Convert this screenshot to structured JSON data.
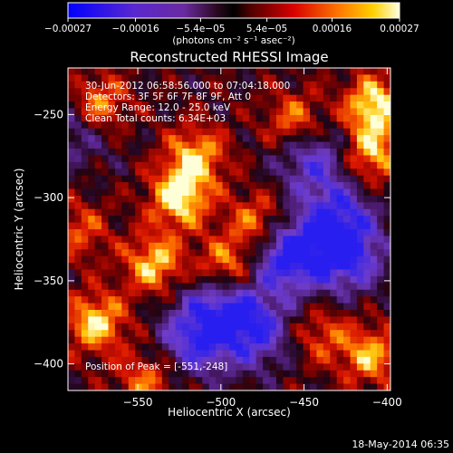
{
  "chart_data": {
    "type": "heatmap",
    "title": "Reconstructed RHESSI Image",
    "xlabel": "Heliocentric X (arcsec)",
    "ylabel": "Heliocentric Y (arcsec)",
    "xlim": [
      -592,
      -398
    ],
    "ylim": [
      -416,
      -222
    ],
    "x_ticks": [
      -550,
      -500,
      -450,
      -400
    ],
    "y_ticks": [
      -250,
      -300,
      -350,
      -400
    ],
    "x_tick_labels": [
      "−550",
      "−500",
      "−450",
      "−400"
    ],
    "y_tick_labels": [
      "−250",
      "−300",
      "−350",
      "−400"
    ],
    "colorbar": {
      "range": [
        -0.00027,
        0.00027
      ],
      "tick_values": [
        -0.00027,
        -0.00016,
        -5.4e-05,
        5.4e-05,
        0.00016,
        0.00027
      ],
      "tick_labels": [
        "−0.00027",
        "−0.00016",
        "−5.4e−05",
        "5.4e−05",
        "0.00016",
        "0.00027"
      ],
      "unit_label": "(photons cm⁻² s⁻¹ asec⁻²)",
      "colors": [
        "#0000ff",
        "#7a3fc8",
        "#3a0a30",
        "#c00000",
        "#ff7a00",
        "#ffffe0"
      ]
    },
    "annotations": [
      "30-Jun-2012 06:58:56.000 to 07:04:18.000",
      "Detectors: 3F 5F 6F 7F 8F 9F, Att 0",
      "Energy Range: 12.0 - 25.0 keV",
      "Clean    Total counts: 6.34E+03",
      "Position of Peak = [-551,-248]"
    ],
    "peak": [
      -551,
      -248
    ],
    "hotspots": [
      {
        "x": -575,
        "y": -245,
        "v": 1.0
      },
      {
        "x": -525,
        "y": -300,
        "v": 1.0
      },
      {
        "x": -515,
        "y": -275,
        "v": 0.8
      },
      {
        "x": -478,
        "y": -315,
        "v": 0.7
      },
      {
        "x": -540,
        "y": -340,
        "v": 0.85
      },
      {
        "x": -497,
        "y": -343,
        "v": 0.95
      },
      {
        "x": -575,
        "y": -375,
        "v": 0.9
      },
      {
        "x": -455,
        "y": -255,
        "v": 0.75
      },
      {
        "x": -408,
        "y": -245,
        "v": 1.0
      },
      {
        "x": -410,
        "y": -275,
        "v": 0.8
      },
      {
        "x": -410,
        "y": -395,
        "v": 0.75
      },
      {
        "x": -545,
        "y": -410,
        "v": 0.6
      },
      {
        "x": -585,
        "y": -320,
        "v": 0.5
      },
      {
        "x": -440,
        "y": -382,
        "v": 0.5
      }
    ],
    "cold_regions": [
      {
        "x": -460,
        "y": -335,
        "v": 1.0
      },
      {
        "x": -425,
        "y": -335,
        "v": 0.9
      },
      {
        "x": -445,
        "y": -275,
        "v": 0.7
      },
      {
        "x": -515,
        "y": -385,
        "v": 0.8
      },
      {
        "x": -480,
        "y": -380,
        "v": 0.8
      },
      {
        "x": -500,
        "y": -360,
        "v": 0.7
      },
      {
        "x": -585,
        "y": -255,
        "v": 0.6
      },
      {
        "x": -430,
        "y": -310,
        "v": 0.7
      }
    ]
  },
  "footer": {
    "date": "18-May-2014 06:35"
  }
}
